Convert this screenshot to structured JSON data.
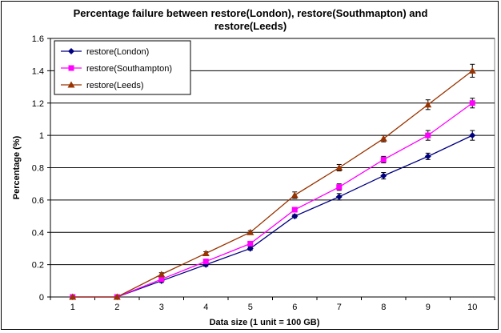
{
  "chart_data": {
    "type": "line",
    "title_lines": [
      "Percentage failure between restore(London), restore(Southmapton) and",
      "restore(Leeds)"
    ],
    "xlabel": "Data size (1 unit = 100 GB)",
    "ylabel": "Percentage (%)",
    "x": [
      1,
      2,
      3,
      4,
      5,
      6,
      7,
      8,
      9,
      10
    ],
    "ylim": [
      0,
      1.6
    ],
    "yticks": [
      0,
      0.2,
      0.4,
      0.6,
      0.8,
      1,
      1.2,
      1.4,
      1.6
    ],
    "ytick_labels": [
      "0",
      "0.2",
      "0.4",
      "0.6",
      "0.8",
      "1",
      "1.2",
      "1.4",
      "1.6"
    ],
    "grid": "horizontal",
    "legend_position": "top-left",
    "series": [
      {
        "name": "restore(London)",
        "color": "#000080",
        "marker": "diamond",
        "values": [
          0,
          0,
          0.1,
          0.2,
          0.3,
          0.5,
          0.62,
          0.75,
          0.87,
          1.0
        ],
        "errors": [
          0,
          0,
          0.01,
          0.01,
          0.01,
          0.01,
          0.02,
          0.02,
          0.02,
          0.03
        ]
      },
      {
        "name": "restore(Southampton)",
        "color": "#FF00FF",
        "marker": "square",
        "values": [
          0,
          0,
          0.11,
          0.22,
          0.33,
          0.54,
          0.68,
          0.85,
          1.0,
          1.2
        ],
        "errors": [
          0,
          0,
          0.01,
          0.01,
          0.01,
          0.01,
          0.02,
          0.02,
          0.03,
          0.03
        ]
      },
      {
        "name": "restore(Leeds)",
        "color": "#993300",
        "marker": "triangle",
        "values": [
          0,
          0,
          0.14,
          0.27,
          0.4,
          0.63,
          0.8,
          0.98,
          1.19,
          1.4
        ],
        "errors": [
          0,
          0,
          0.01,
          0.01,
          0.01,
          0.02,
          0.02,
          0.02,
          0.03,
          0.04
        ]
      }
    ]
  }
}
